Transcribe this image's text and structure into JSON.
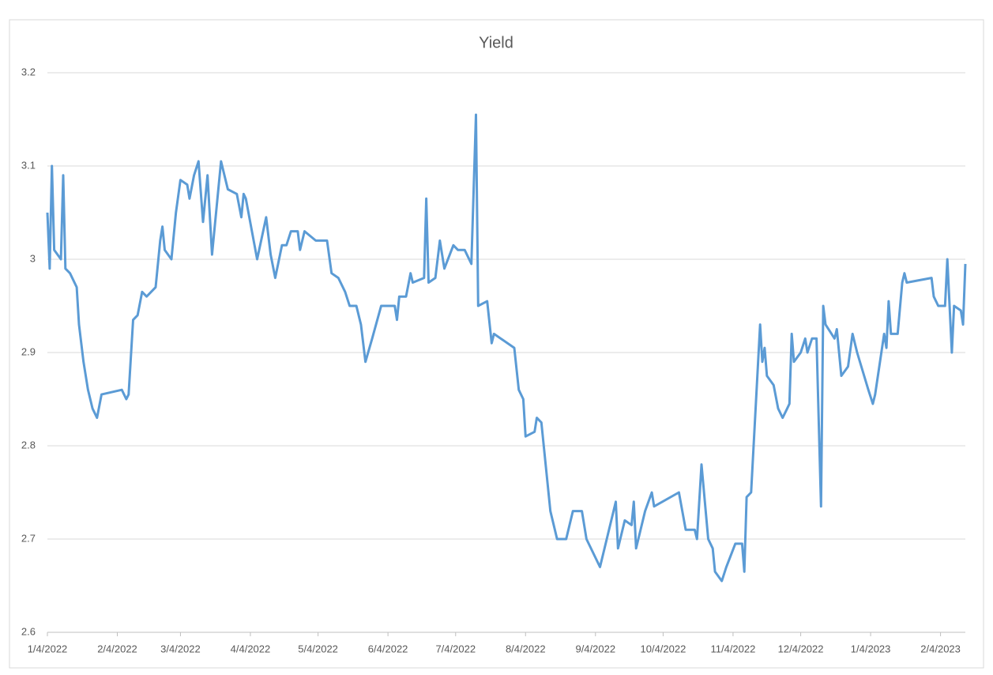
{
  "chart_data": {
    "type": "line",
    "title": "Yield",
    "x": [
      "2022-01-04",
      "2022-01-05",
      "2022-01-06",
      "2022-01-07",
      "2022-01-10",
      "2022-01-11",
      "2022-01-12",
      "2022-01-14",
      "2022-01-17",
      "2022-01-18",
      "2022-01-20",
      "2022-01-22",
      "2022-01-24",
      "2022-01-26",
      "2022-01-28",
      "2022-02-06",
      "2022-02-08",
      "2022-02-09",
      "2022-02-11",
      "2022-02-13",
      "2022-02-15",
      "2022-02-17",
      "2022-02-21",
      "2022-02-23",
      "2022-02-24",
      "2022-02-25",
      "2022-02-28",
      "2022-03-02",
      "2022-03-04",
      "2022-03-07",
      "2022-03-08",
      "2022-03-10",
      "2022-03-12",
      "2022-03-14",
      "2022-03-16",
      "2022-03-18",
      "2022-03-22",
      "2022-03-25",
      "2022-03-29",
      "2022-03-31",
      "2022-04-01",
      "2022-04-02",
      "2022-04-07",
      "2022-04-11",
      "2022-04-13",
      "2022-04-15",
      "2022-04-18",
      "2022-04-20",
      "2022-04-22",
      "2022-04-25",
      "2022-04-26",
      "2022-04-28",
      "2022-05-03",
      "2022-05-08",
      "2022-05-10",
      "2022-05-13",
      "2022-05-16",
      "2022-05-18",
      "2022-05-21",
      "2022-05-23",
      "2022-05-25",
      "2022-05-28",
      "2022-06-01",
      "2022-06-07",
      "2022-06-08",
      "2022-06-09",
      "2022-06-12",
      "2022-06-14",
      "2022-06-15",
      "2022-06-20",
      "2022-06-21",
      "2022-06-22",
      "2022-06-25",
      "2022-06-27",
      "2022-06-29",
      "2022-07-03",
      "2022-07-05",
      "2022-07-08",
      "2022-07-11",
      "2022-07-13",
      "2022-07-14",
      "2022-07-18",
      "2022-07-20",
      "2022-07-21",
      "2022-07-30",
      "2022-08-01",
      "2022-08-03",
      "2022-08-04",
      "2022-08-08",
      "2022-08-09",
      "2022-08-11",
      "2022-08-15",
      "2022-08-18",
      "2022-08-22",
      "2022-08-25",
      "2022-08-29",
      "2022-08-31",
      "2022-09-06",
      "2022-09-13",
      "2022-09-14",
      "2022-09-17",
      "2022-09-20",
      "2022-09-21",
      "2022-09-22",
      "2022-09-26",
      "2022-09-29",
      "2022-09-30",
      "2022-10-11",
      "2022-10-14",
      "2022-10-18",
      "2022-10-19",
      "2022-10-21",
      "2022-10-24",
      "2022-10-26",
      "2022-10-27",
      "2022-10-30",
      "2022-11-01",
      "2022-11-05",
      "2022-11-08",
      "2022-11-09",
      "2022-11-10",
      "2022-11-12",
      "2022-11-16",
      "2022-11-17",
      "2022-11-18",
      "2022-11-19",
      "2022-11-22",
      "2022-11-24",
      "2022-11-26",
      "2022-11-28",
      "2022-11-29",
      "2022-11-30",
      "2022-12-01",
      "2022-12-04",
      "2022-12-06",
      "2022-12-07",
      "2022-12-09",
      "2022-12-11",
      "2022-12-13",
      "2022-12-14",
      "2022-12-15",
      "2022-12-19",
      "2022-12-20",
      "2022-12-22",
      "2022-12-25",
      "2022-12-27",
      "2022-12-29",
      "2023-01-03",
      "2023-01-05",
      "2023-01-06",
      "2023-01-10",
      "2023-01-11",
      "2023-01-12",
      "2023-01-13",
      "2023-01-16",
      "2023-01-18",
      "2023-01-19",
      "2023-01-20",
      "2023-01-31",
      "2023-02-01",
      "2023-02-03",
      "2023-02-06",
      "2023-02-07",
      "2023-02-09",
      "2023-02-10",
      "2023-02-13",
      "2023-02-14",
      "2023-02-15"
    ],
    "series": [
      {
        "name": "Yield",
        "color": "#5b9bd5",
        "values": [
          3.05,
          2.99,
          3.1,
          3.01,
          3.0,
          3.09,
          2.99,
          2.985,
          2.97,
          2.93,
          2.89,
          2.86,
          2.84,
          2.83,
          2.855,
          2.86,
          2.85,
          2.855,
          2.935,
          2.94,
          2.965,
          2.96,
          2.97,
          3.02,
          3.035,
          3.01,
          3.0,
          3.05,
          3.085,
          3.08,
          3.065,
          3.09,
          3.105,
          3.04,
          3.09,
          3.005,
          3.105,
          3.075,
          3.07,
          3.045,
          3.07,
          3.065,
          3.0,
          3.045,
          3.005,
          2.98,
          3.015,
          3.015,
          3.03,
          3.03,
          3.01,
          3.03,
          3.02,
          3.02,
          2.985,
          2.98,
          2.965,
          2.95,
          2.95,
          2.93,
          2.89,
          2.915,
          2.95,
          2.95,
          2.935,
          2.96,
          2.96,
          2.985,
          2.975,
          2.98,
          3.065,
          2.975,
          2.98,
          3.02,
          2.99,
          3.015,
          3.01,
          3.01,
          2.995,
          3.155,
          2.95,
          2.955,
          2.91,
          2.92,
          2.905,
          2.86,
          2.85,
          2.81,
          2.815,
          2.83,
          2.825,
          2.73,
          2.7,
          2.7,
          2.73,
          2.73,
          2.7,
          2.67,
          2.74,
          2.69,
          2.72,
          2.715,
          2.74,
          2.69,
          2.73,
          2.75,
          2.735,
          2.75,
          2.71,
          2.71,
          2.7,
          2.78,
          2.7,
          2.69,
          2.665,
          2.655,
          2.67,
          2.695,
          2.695,
          2.665,
          2.745,
          2.75,
          2.93,
          2.89,
          2.905,
          2.875,
          2.865,
          2.84,
          2.83,
          2.84,
          2.845,
          2.92,
          2.89,
          2.9,
          2.915,
          2.9,
          2.915,
          2.915,
          2.735,
          2.95,
          2.93,
          2.915,
          2.925,
          2.875,
          2.885,
          2.92,
          2.9,
          2.86,
          2.845,
          2.855,
          2.92,
          2.905,
          2.955,
          2.92,
          2.92,
          2.975,
          2.985,
          2.975,
          2.98,
          2.96,
          2.95,
          2.95,
          3.0,
          2.9,
          2.95,
          2.945,
          2.93,
          2.995
        ]
      }
    ],
    "xlim": [
      "2022-01-04",
      "2023-02-15"
    ],
    "xticks": [
      {
        "value": "2022-01-04",
        "label": "1/4/2022"
      },
      {
        "value": "2022-02-04",
        "label": "2/4/2022"
      },
      {
        "value": "2022-03-04",
        "label": "3/4/2022"
      },
      {
        "value": "2022-04-04",
        "label": "4/4/2022"
      },
      {
        "value": "2022-05-04",
        "label": "5/4/2022"
      },
      {
        "value": "2022-06-04",
        "label": "6/4/2022"
      },
      {
        "value": "2022-07-04",
        "label": "7/4/2022"
      },
      {
        "value": "2022-08-04",
        "label": "8/4/2022"
      },
      {
        "value": "2022-09-04",
        "label": "9/4/2022"
      },
      {
        "value": "2022-10-04",
        "label": "10/4/2022"
      },
      {
        "value": "2022-11-04",
        "label": "11/4/2022"
      },
      {
        "value": "2022-12-04",
        "label": "12/4/2022"
      },
      {
        "value": "2023-01-04",
        "label": "1/4/2023"
      },
      {
        "value": "2023-02-04",
        "label": "2/4/2023"
      }
    ],
    "ylim": [
      2.6,
      3.2
    ],
    "yticks": [
      2.6,
      2.7,
      2.8,
      2.9,
      3,
      3.1,
      3.2
    ],
    "grid": true
  }
}
